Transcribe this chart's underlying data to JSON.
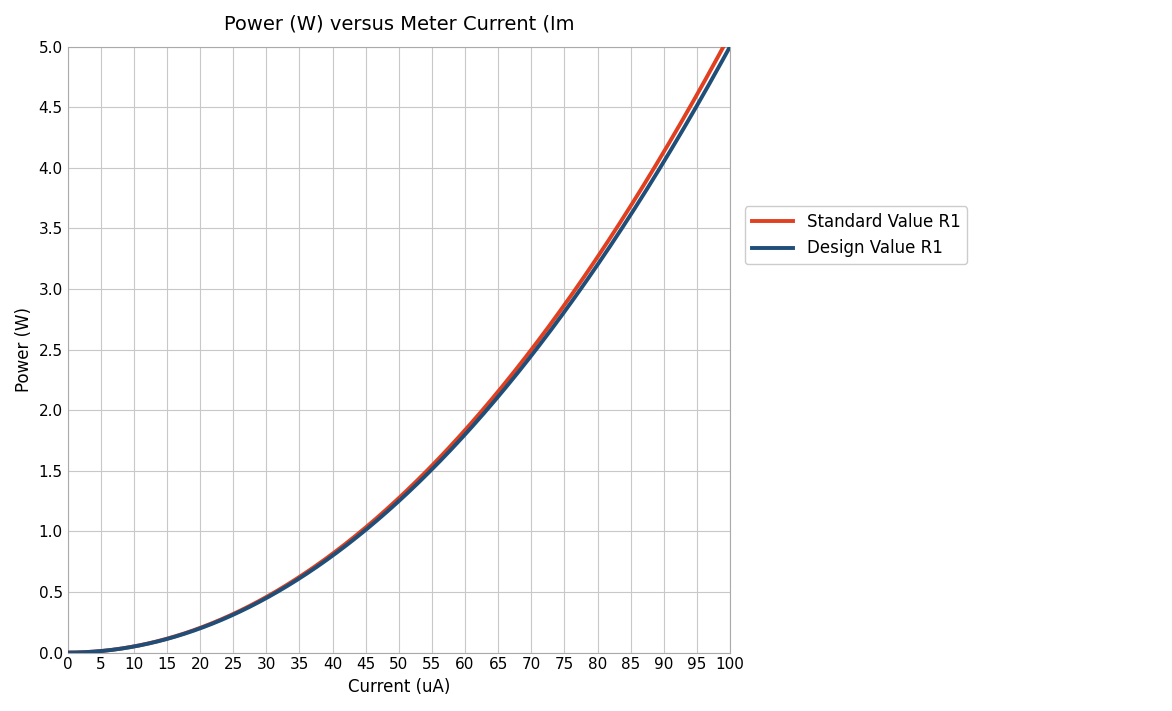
{
  "title": "Power (W) versus Meter Current (Im",
  "xlabel": "Current (uA)",
  "ylabel": "Power (W)",
  "xlim": [
    0,
    100
  ],
  "ylim": [
    0,
    5.0
  ],
  "xticks": [
    0,
    5,
    10,
    15,
    20,
    25,
    30,
    35,
    40,
    45,
    50,
    55,
    60,
    65,
    70,
    75,
    80,
    85,
    90,
    95,
    100
  ],
  "yticks": [
    0.0,
    0.5,
    1.0,
    1.5,
    2.0,
    2.5,
    3.0,
    3.5,
    4.0,
    4.5,
    5.0
  ],
  "design_color": "#1f4e79",
  "standard_color": "#e04020",
  "design_label": "Design Value R1",
  "standard_label": "Standard Value R1",
  "design_R": 500000000,
  "standard_R": 510000000,
  "line_width": 2.8,
  "background_color": "#ffffff",
  "grid_color": "#c8c8c8",
  "title_fontsize": 14,
  "label_fontsize": 12,
  "tick_fontsize": 11,
  "legend_fontsize": 12
}
